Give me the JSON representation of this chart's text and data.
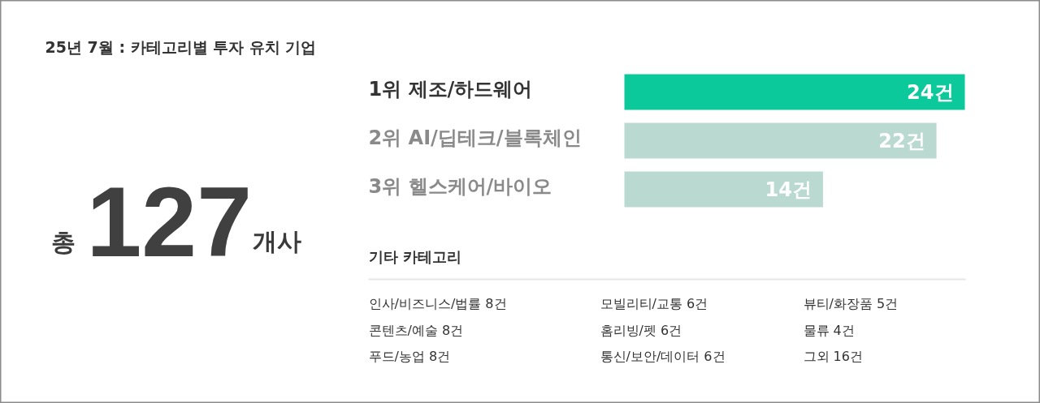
{
  "chart_data": {
    "type": "bar",
    "orientation": "horizontal",
    "title": "25년 7월 : 카테고리별 투자 유치 기업",
    "categories": [
      "1위 제조/하드웨어",
      "2위 AI/딥테크/블록체인",
      "3위 헬스케어/바이오"
    ],
    "values": [
      24,
      22,
      14
    ],
    "colors": [
      "#0cc99c",
      "#b9d9d1",
      "#b9d9d1"
    ],
    "value_labels": [
      "24건",
      "22건",
      "14건"
    ],
    "annotations": [
      "총",
      "127",
      "개사",
      "기타 카테고리",
      "인사/비즈니스/법률 8건",
      "모빌리티/교통 6건",
      "뷰티/화장품 5건",
      "콘텐츠/예술 8건",
      "홈리빙/펫 6건",
      "물류 4건",
      "푸드/농업 8건",
      "통신/보안/데이터 6건",
      "그외 16건"
    ]
  }
}
